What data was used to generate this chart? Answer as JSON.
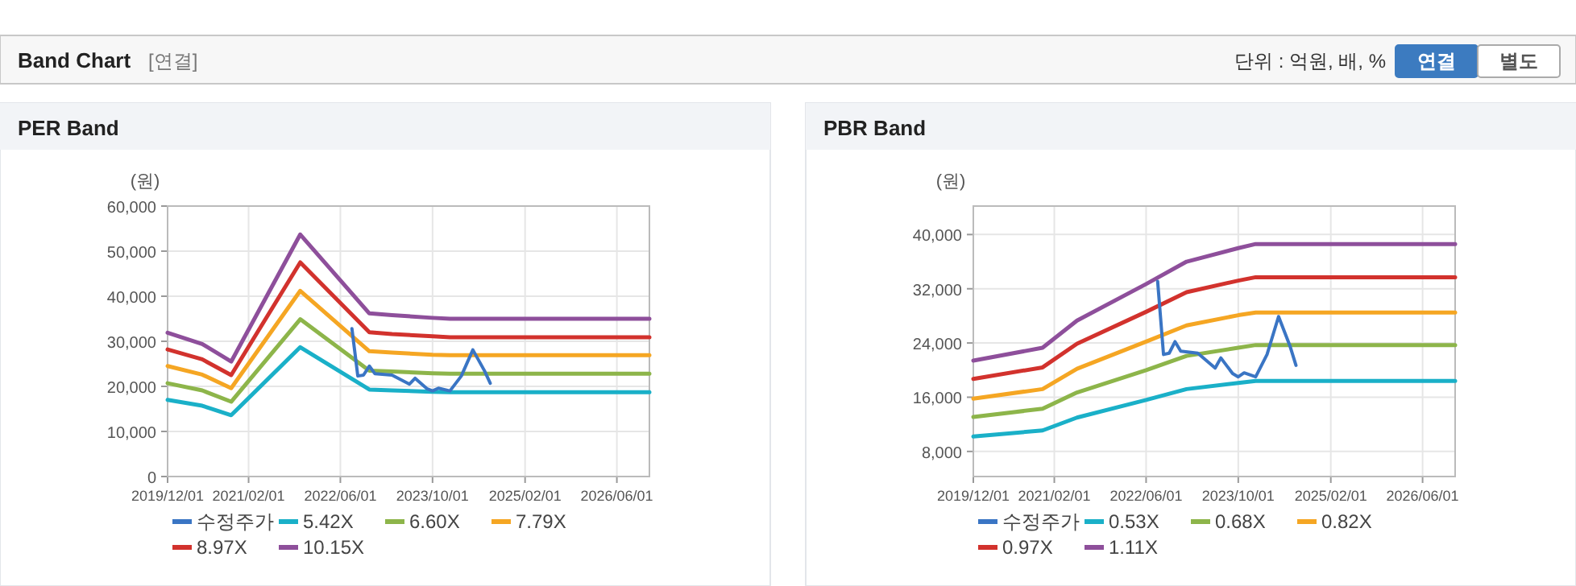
{
  "chart_data": [
    {
      "type": "other",
      "title": "Band Chart",
      "annotations": [
        "[연결]",
        "단위 : 억원, 배, %",
        "연결",
        "별도"
      ]
    },
    {
      "type": "line",
      "title": "PER Band",
      "ylabel": "(원)",
      "grid": true,
      "legend": "bottom",
      "xlim": [
        "2019-12-01",
        "2026-11-20"
      ],
      "xticks": [
        {
          "value": "2019-12-01",
          "label": "2019/12/01"
        },
        {
          "value": "2021-02-01",
          "label": "2021/02/01"
        },
        {
          "value": "2022-06-01",
          "label": "2022/06/01"
        },
        {
          "value": "2023-10-01",
          "label": "2023/10/01"
        },
        {
          "value": "2025-02-01",
          "label": "2025/02/01"
        },
        {
          "value": "2026-06-01",
          "label": "2026/06/01"
        }
      ],
      "ylim": [
        0,
        60000
      ],
      "yticks": [
        0,
        {
          "value": 10000,
          "label": "10,000"
        },
        {
          "value": 20000,
          "label": "20,000"
        },
        {
          "value": 30000,
          "label": "30,000"
        },
        {
          "value": 40000,
          "label": "40,000"
        },
        {
          "value": 50000,
          "label": "50,000"
        },
        {
          "value": 60000,
          "label": "60,000"
        }
      ],
      "series": [
        {
          "name": "수정주가",
          "color": "#3a75c4",
          "x": [
            "2022-08",
            "2022-09",
            "2022-10",
            "2022-11",
            "2022-12",
            "2023-03",
            "2023-06",
            "2023-07",
            "2023-09",
            "2023-10",
            "2023-11",
            "2024-01",
            "2024-03",
            "2024-05",
            "2024-07",
            "2024-08"
          ],
          "values": [
            32800,
            22300,
            22500,
            24500,
            22800,
            22500,
            20500,
            21800,
            19500,
            19000,
            19600,
            19000,
            22300,
            28100,
            23500,
            20700
          ]
        },
        {
          "name": "5.42X",
          "color": "#1ab0c8",
          "x": [
            "2019-12",
            "2020-06",
            "2020-11",
            "2021-11",
            "2022-11",
            "2023-03",
            "2023-10",
            "2024-01",
            "2026-11-20"
          ],
          "values": [
            17000,
            15700,
            13600,
            28700,
            19300,
            19100,
            18800,
            18700,
            18700
          ]
        },
        {
          "name": "6.60X",
          "color": "#8db54a",
          "x": [
            "2019-12",
            "2020-06",
            "2020-11",
            "2021-11",
            "2022-11",
            "2023-03",
            "2023-10",
            "2024-01",
            "2026-11-20"
          ],
          "values": [
            20700,
            19100,
            16600,
            34900,
            23500,
            23300,
            22900,
            22800,
            22800
          ]
        },
        {
          "name": "7.79X",
          "color": "#f5a623",
          "x": [
            "2019-12",
            "2020-06",
            "2020-11",
            "2021-11",
            "2022-11",
            "2023-03",
            "2023-10",
            "2024-01",
            "2026-11-20"
          ],
          "values": [
            24500,
            22600,
            19600,
            41200,
            27800,
            27500,
            27000,
            26900,
            26900
          ]
        },
        {
          "name": "8.97X",
          "color": "#d2322d",
          "x": [
            "2019-12",
            "2020-06",
            "2020-11",
            "2021-11",
            "2022-11",
            "2023-03",
            "2023-10",
            "2024-01",
            "2026-11-20"
          ],
          "values": [
            28200,
            26000,
            22500,
            47500,
            32000,
            31600,
            31100,
            30900,
            30900
          ]
        },
        {
          "name": "10.15X",
          "color": "#8e4f9b",
          "x": [
            "2019-12",
            "2020-06",
            "2020-11",
            "2021-11",
            "2022-11",
            "2023-03",
            "2023-10",
            "2024-01",
            "2026-11-20"
          ],
          "values": [
            31900,
            29400,
            25500,
            53700,
            36200,
            35800,
            35200,
            35000,
            35000
          ]
        }
      ]
    },
    {
      "type": "line",
      "title": "PBR Band",
      "ylabel": "(원)",
      "grid": true,
      "legend": "bottom",
      "xlim": [
        "2019-12-01",
        "2026-11-20"
      ],
      "xticks": [
        {
          "value": "2019-12-01",
          "label": "2019/12/01"
        },
        {
          "value": "2021-02-01",
          "label": "2021/02/01"
        },
        {
          "value": "2022-06-01",
          "label": "2022/06/01"
        },
        {
          "value": "2023-10-01",
          "label": "2023/10/01"
        },
        {
          "value": "2025-02-01",
          "label": "2025/02/01"
        },
        {
          "value": "2026-06-01",
          "label": "2026/06/01"
        }
      ],
      "ylim": [
        4300,
        44200
      ],
      "yticks": [
        {
          "value": 8000,
          "label": "8,000"
        },
        {
          "value": 16000,
          "label": "16,000"
        },
        {
          "value": 24000,
          "label": "24,000"
        },
        {
          "value": 32000,
          "label": "32,000"
        },
        {
          "value": 40000,
          "label": "40,000"
        }
      ],
      "series": [
        {
          "name": "수정주가",
          "color": "#3a75c4",
          "x": [
            "2022-08",
            "2022-09",
            "2022-10",
            "2022-11",
            "2022-12",
            "2023-03",
            "2023-06",
            "2023-07",
            "2023-09",
            "2023-10",
            "2023-11",
            "2024-01",
            "2024-03",
            "2024-05",
            "2024-07",
            "2024-08"
          ],
          "values": [
            33100,
            22300,
            22500,
            24200,
            22800,
            22500,
            20300,
            21800,
            19500,
            19000,
            19600,
            19000,
            22300,
            27900,
            23500,
            20700
          ]
        },
        {
          "name": "0.53X",
          "color": "#1ab0c8",
          "x": [
            "2019-12",
            "2020-12",
            "2021-06",
            "2022-06",
            "2023-01",
            "2023-10",
            "2024-01",
            "2026-11-20"
          ],
          "values": [
            10200,
            11100,
            13000,
            15600,
            17200,
            18100,
            18400,
            18400
          ]
        },
        {
          "name": "0.68X",
          "color": "#8db54a",
          "x": [
            "2019-12",
            "2020-12",
            "2021-06",
            "2022-06",
            "2023-01",
            "2023-10",
            "2024-01",
            "2026-11-20"
          ],
          "values": [
            13100,
            14300,
            16700,
            20000,
            22100,
            23300,
            23700,
            23700
          ]
        },
        {
          "name": "0.82X",
          "color": "#f5a623",
          "x": [
            "2019-12",
            "2020-12",
            "2021-06",
            "2022-06",
            "2023-01",
            "2023-10",
            "2024-01",
            "2026-11-20"
          ],
          "values": [
            15800,
            17200,
            20200,
            24200,
            26600,
            28100,
            28500,
            28500
          ]
        },
        {
          "name": "0.97X",
          "color": "#d2322d",
          "x": [
            "2019-12",
            "2020-12",
            "2021-06",
            "2022-06",
            "2023-01",
            "2023-10",
            "2024-01",
            "2026-11-20"
          ],
          "values": [
            18700,
            20400,
            23900,
            28600,
            31500,
            33200,
            33700,
            33700
          ]
        },
        {
          "name": "1.11X",
          "color": "#8e4f9b",
          "x": [
            "2019-12",
            "2020-12",
            "2021-06",
            "2022-06",
            "2023-01",
            "2023-10",
            "2024-01",
            "2026-11-20"
          ],
          "values": [
            21400,
            23300,
            27300,
            32700,
            36000,
            38000,
            38600,
            38600
          ]
        }
      ]
    }
  ]
}
